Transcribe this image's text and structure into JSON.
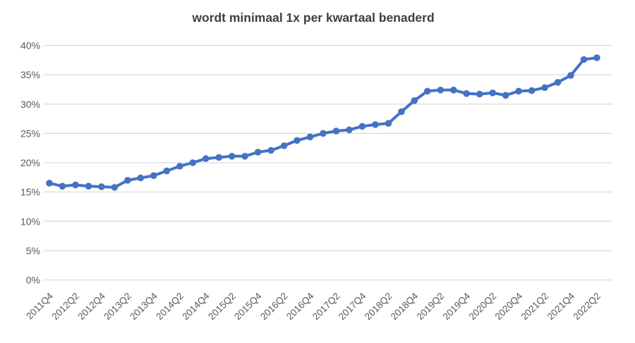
{
  "chart": {
    "title": "wordt minimaal 1x per kwartaal benaderd"
  },
  "chart_data": {
    "type": "line",
    "title": "wordt minimaal 1x per kwartaal benaderd",
    "x": [
      "2011Q4",
      "2012Q1",
      "2012Q2",
      "2012Q3",
      "2012Q4",
      "2013Q1",
      "2013Q2",
      "2013Q3",
      "2013Q4",
      "2014Q1",
      "2014Q2",
      "2014Q3",
      "2014Q4",
      "2015Q1",
      "2015Q2",
      "2015Q3",
      "2015Q4",
      "2016Q1",
      "2016Q2",
      "2016Q3",
      "2016Q4",
      "2017Q1",
      "2017Q2",
      "2017Q3",
      "2017Q4",
      "2018Q1",
      "2018Q2",
      "2018Q3",
      "2018Q4",
      "2019Q1",
      "2019Q2",
      "2019Q3",
      "2019Q4",
      "2020Q1",
      "2020Q2",
      "2020Q3",
      "2020Q4",
      "2021Q1",
      "2021Q2",
      "2021Q3",
      "2021Q4",
      "2022Q1",
      "2022Q2"
    ],
    "values": [
      16.5,
      16.0,
      16.2,
      16.0,
      15.9,
      15.8,
      17.0,
      17.4,
      17.8,
      18.6,
      19.4,
      20.0,
      20.7,
      20.9,
      21.1,
      21.1,
      21.8,
      22.1,
      22.9,
      23.8,
      24.4,
      25.0,
      25.4,
      25.6,
      26.2,
      26.5,
      26.7,
      28.7,
      30.6,
      32.2,
      32.4,
      32.4,
      31.8,
      31.7,
      31.9,
      31.5,
      32.2,
      32.3,
      32.8,
      33.7,
      34.9,
      37.6,
      37.9
    ],
    "x_tick_labels": [
      "2011Q4",
      "2012Q2",
      "2012Q4",
      "2013Q2",
      "2013Q4",
      "2014Q2",
      "2014Q4",
      "2015Q2",
      "2015Q4",
      "2016Q2",
      "2016Q4",
      "2017Q2",
      "2017Q4",
      "2018Q2",
      "2018Q4",
      "2019Q2",
      "2019Q4",
      "2020Q2",
      "2020Q4",
      "2021Q2",
      "2021Q4",
      "2022Q2"
    ],
    "x_tick_every": 2,
    "y_tick_labels": [
      "0%",
      "5%",
      "10%",
      "15%",
      "20%",
      "25%",
      "30%",
      "35%",
      "40%"
    ],
    "ylim": [
      0,
      40
    ],
    "ytick_step": 5,
    "ytick_suffix": "%",
    "grid": true,
    "legend": false,
    "xlabel": "",
    "ylabel": "",
    "colors": {
      "line": "#4472C4",
      "marker": "#4472C4",
      "gridline": "#D9D9D9",
      "axis_text": "#595959",
      "title_text": "#3F3F3F",
      "background": "#FFFFFF"
    }
  }
}
